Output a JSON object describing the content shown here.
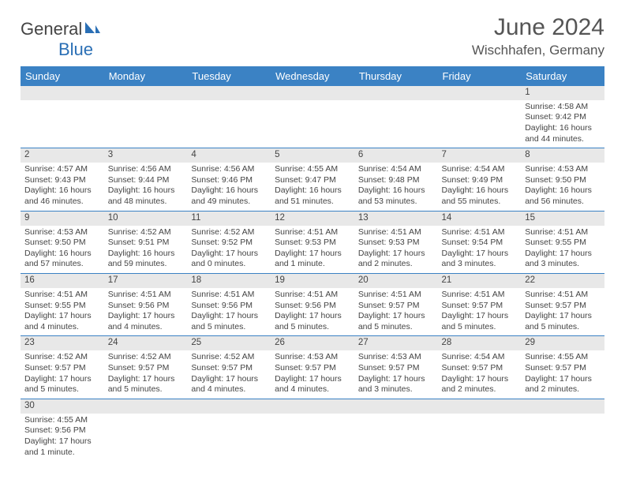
{
  "logo": {
    "general": "General",
    "blue": "Blue"
  },
  "title": "June 2024",
  "location": "Wischhafen, Germany",
  "header_bg": "#3b82c4",
  "header_text_color": "#ffffff",
  "daynum_bg": "#e8e8e8",
  "border_color": "#3b82c4",
  "weekdays": [
    "Sunday",
    "Monday",
    "Tuesday",
    "Wednesday",
    "Thursday",
    "Friday",
    "Saturday"
  ],
  "weeks": [
    [
      null,
      null,
      null,
      null,
      null,
      null,
      {
        "n": "1",
        "sr": "Sunrise: 4:58 AM",
        "ss": "Sunset: 9:42 PM",
        "dl": "Daylight: 16 hours and 44 minutes."
      }
    ],
    [
      {
        "n": "2",
        "sr": "Sunrise: 4:57 AM",
        "ss": "Sunset: 9:43 PM",
        "dl": "Daylight: 16 hours and 46 minutes."
      },
      {
        "n": "3",
        "sr": "Sunrise: 4:56 AM",
        "ss": "Sunset: 9:44 PM",
        "dl": "Daylight: 16 hours and 48 minutes."
      },
      {
        "n": "4",
        "sr": "Sunrise: 4:56 AM",
        "ss": "Sunset: 9:46 PM",
        "dl": "Daylight: 16 hours and 49 minutes."
      },
      {
        "n": "5",
        "sr": "Sunrise: 4:55 AM",
        "ss": "Sunset: 9:47 PM",
        "dl": "Daylight: 16 hours and 51 minutes."
      },
      {
        "n": "6",
        "sr": "Sunrise: 4:54 AM",
        "ss": "Sunset: 9:48 PM",
        "dl": "Daylight: 16 hours and 53 minutes."
      },
      {
        "n": "7",
        "sr": "Sunrise: 4:54 AM",
        "ss": "Sunset: 9:49 PM",
        "dl": "Daylight: 16 hours and 55 minutes."
      },
      {
        "n": "8",
        "sr": "Sunrise: 4:53 AM",
        "ss": "Sunset: 9:50 PM",
        "dl": "Daylight: 16 hours and 56 minutes."
      }
    ],
    [
      {
        "n": "9",
        "sr": "Sunrise: 4:53 AM",
        "ss": "Sunset: 9:50 PM",
        "dl": "Daylight: 16 hours and 57 minutes."
      },
      {
        "n": "10",
        "sr": "Sunrise: 4:52 AM",
        "ss": "Sunset: 9:51 PM",
        "dl": "Daylight: 16 hours and 59 minutes."
      },
      {
        "n": "11",
        "sr": "Sunrise: 4:52 AM",
        "ss": "Sunset: 9:52 PM",
        "dl": "Daylight: 17 hours and 0 minutes."
      },
      {
        "n": "12",
        "sr": "Sunrise: 4:51 AM",
        "ss": "Sunset: 9:53 PM",
        "dl": "Daylight: 17 hours and 1 minute."
      },
      {
        "n": "13",
        "sr": "Sunrise: 4:51 AM",
        "ss": "Sunset: 9:53 PM",
        "dl": "Daylight: 17 hours and 2 minutes."
      },
      {
        "n": "14",
        "sr": "Sunrise: 4:51 AM",
        "ss": "Sunset: 9:54 PM",
        "dl": "Daylight: 17 hours and 3 minutes."
      },
      {
        "n": "15",
        "sr": "Sunrise: 4:51 AM",
        "ss": "Sunset: 9:55 PM",
        "dl": "Daylight: 17 hours and 3 minutes."
      }
    ],
    [
      {
        "n": "16",
        "sr": "Sunrise: 4:51 AM",
        "ss": "Sunset: 9:55 PM",
        "dl": "Daylight: 17 hours and 4 minutes."
      },
      {
        "n": "17",
        "sr": "Sunrise: 4:51 AM",
        "ss": "Sunset: 9:56 PM",
        "dl": "Daylight: 17 hours and 4 minutes."
      },
      {
        "n": "18",
        "sr": "Sunrise: 4:51 AM",
        "ss": "Sunset: 9:56 PM",
        "dl": "Daylight: 17 hours and 5 minutes."
      },
      {
        "n": "19",
        "sr": "Sunrise: 4:51 AM",
        "ss": "Sunset: 9:56 PM",
        "dl": "Daylight: 17 hours and 5 minutes."
      },
      {
        "n": "20",
        "sr": "Sunrise: 4:51 AM",
        "ss": "Sunset: 9:57 PM",
        "dl": "Daylight: 17 hours and 5 minutes."
      },
      {
        "n": "21",
        "sr": "Sunrise: 4:51 AM",
        "ss": "Sunset: 9:57 PM",
        "dl": "Daylight: 17 hours and 5 minutes."
      },
      {
        "n": "22",
        "sr": "Sunrise: 4:51 AM",
        "ss": "Sunset: 9:57 PM",
        "dl": "Daylight: 17 hours and 5 minutes."
      }
    ],
    [
      {
        "n": "23",
        "sr": "Sunrise: 4:52 AM",
        "ss": "Sunset: 9:57 PM",
        "dl": "Daylight: 17 hours and 5 minutes."
      },
      {
        "n": "24",
        "sr": "Sunrise: 4:52 AM",
        "ss": "Sunset: 9:57 PM",
        "dl": "Daylight: 17 hours and 5 minutes."
      },
      {
        "n": "25",
        "sr": "Sunrise: 4:52 AM",
        "ss": "Sunset: 9:57 PM",
        "dl": "Daylight: 17 hours and 4 minutes."
      },
      {
        "n": "26",
        "sr": "Sunrise: 4:53 AM",
        "ss": "Sunset: 9:57 PM",
        "dl": "Daylight: 17 hours and 4 minutes."
      },
      {
        "n": "27",
        "sr": "Sunrise: 4:53 AM",
        "ss": "Sunset: 9:57 PM",
        "dl": "Daylight: 17 hours and 3 minutes."
      },
      {
        "n": "28",
        "sr": "Sunrise: 4:54 AM",
        "ss": "Sunset: 9:57 PM",
        "dl": "Daylight: 17 hours and 2 minutes."
      },
      {
        "n": "29",
        "sr": "Sunrise: 4:55 AM",
        "ss": "Sunset: 9:57 PM",
        "dl": "Daylight: 17 hours and 2 minutes."
      }
    ],
    [
      {
        "n": "30",
        "sr": "Sunrise: 4:55 AM",
        "ss": "Sunset: 9:56 PM",
        "dl": "Daylight: 17 hours and 1 minute."
      },
      null,
      null,
      null,
      null,
      null,
      null
    ]
  ]
}
